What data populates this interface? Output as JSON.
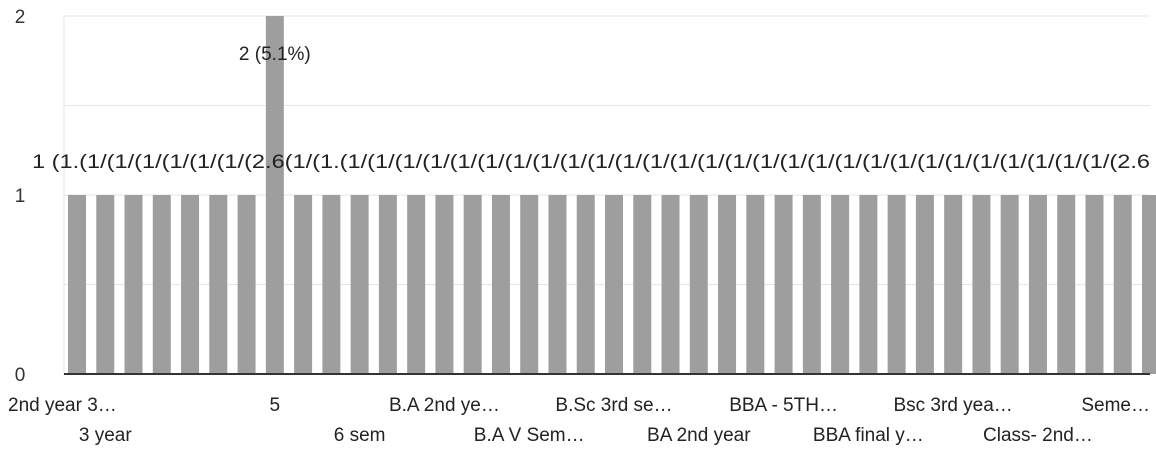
{
  "chart_data": {
    "type": "bar",
    "categories": [
      "2nd year 3…",
      "3 year",
      "",
      "",
      "",
      "",
      "",
      "5",
      "",
      "",
      "6 sem",
      "",
      "",
      "B.A 2nd ye…",
      "",
      "",
      "B.A V Sem…",
      "",
      "",
      "B.Sc 3rd se…",
      "",
      "",
      "BA 2nd year",
      "",
      "",
      "BBA - 5TH…",
      "",
      "",
      "BBA final y…",
      "",
      "",
      "Bsc 3rd yea…",
      "",
      "",
      "Class- 2nd…",
      "",
      "",
      "",
      "Seme…"
    ],
    "values": [
      1,
      1,
      1,
      1,
      1,
      1,
      1,
      2,
      1,
      1,
      1,
      1,
      1,
      1,
      1,
      1,
      1,
      1,
      1,
      1,
      1,
      1,
      1,
      1,
      1,
      1,
      1,
      1,
      1,
      1,
      1,
      1,
      1,
      1,
      1,
      1,
      1,
      1,
      1
    ],
    "ylim": [
      0,
      2
    ],
    "yticks": [
      "0",
      "1",
      "2"
    ],
    "highlight_label": "2 (5.1%)",
    "data_labels_row": "1 (1.(1/(1/(1/(1/(1/(1/(2.6(1/(1.(1/(1/(1/(1/(1/(1/(1/(1/(1/(1/(1/(1/(1/(1/(1/(1/(1/(1/(1/(1/(1/(1/(1/(1/(1/(1/(1/(1/(2.6",
    "xlabel": "",
    "ylabel": "",
    "title": "",
    "grid": true,
    "bar_color": "#9e9e9e",
    "grid_color": "#e6e6e6",
    "axis_color": "#333333"
  }
}
